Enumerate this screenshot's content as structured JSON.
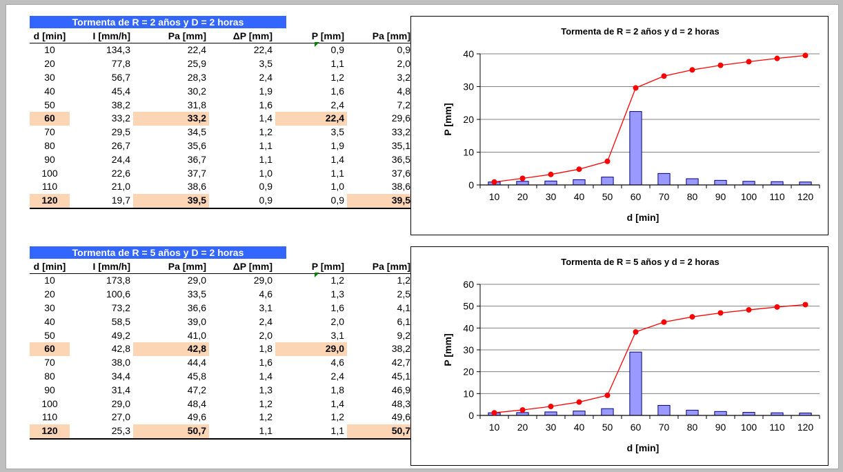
{
  "colors": {
    "banner": "#3366ff",
    "highlight": "#fcd5b4",
    "bar_fill": "#9999ff",
    "line": "#ff0000"
  },
  "headers": [
    "d [min]",
    "I [mm/h]",
    "Pa [mm]",
    "ΔP [mm]",
    "P [mm]",
    "Pa [mm]"
  ],
  "tables": [
    {
      "banner": "Tormenta de R = 2 años y D = 2 horas",
      "rows": [
        [
          "10",
          "134,3",
          "22,4",
          "22,4",
          "0,9",
          "0,9"
        ],
        [
          "20",
          "77,8",
          "25,9",
          "3,5",
          "1,1",
          "2,0"
        ],
        [
          "30",
          "56,7",
          "28,3",
          "2,4",
          "1,2",
          "3,2"
        ],
        [
          "40",
          "45,4",
          "30,2",
          "1,9",
          "1,6",
          "4,8"
        ],
        [
          "50",
          "38,2",
          "31,8",
          "1,6",
          "2,4",
          "7,2"
        ],
        [
          "60",
          "33,2",
          "33,2",
          "1,4",
          "22,4",
          "29,6"
        ],
        [
          "70",
          "29,5",
          "34,5",
          "1,2",
          "3,5",
          "33,2"
        ],
        [
          "80",
          "26,7",
          "35,6",
          "1,1",
          "1,9",
          "35,1"
        ],
        [
          "90",
          "24,4",
          "36,7",
          "1,1",
          "1,4",
          "36,5"
        ],
        [
          "100",
          "22,6",
          "37,7",
          "1,0",
          "1,1",
          "37,6"
        ],
        [
          "110",
          "21,0",
          "38,6",
          "0,9",
          "1,0",
          "38,6"
        ],
        [
          "120",
          "19,7",
          "39,5",
          "0,9",
          "0,9",
          "39,5"
        ]
      ],
      "highlights": [
        [
          5,
          0
        ],
        [
          5,
          2
        ],
        [
          5,
          4
        ],
        [
          11,
          0
        ],
        [
          11,
          2
        ],
        [
          11,
          5
        ]
      ]
    },
    {
      "banner": "Tormenta de R = 5 años y D = 2 horas",
      "rows": [
        [
          "10",
          "173,8",
          "29,0",
          "29,0",
          "1,2",
          "1,2"
        ],
        [
          "20",
          "100,6",
          "33,5",
          "4,6",
          "1,3",
          "2,5"
        ],
        [
          "30",
          "73,2",
          "36,6",
          "3,1",
          "1,6",
          "4,1"
        ],
        [
          "40",
          "58,5",
          "39,0",
          "2,4",
          "2,0",
          "6,1"
        ],
        [
          "50",
          "49,2",
          "41,0",
          "2,0",
          "3,1",
          "9,2"
        ],
        [
          "60",
          "42,8",
          "42,8",
          "1,8",
          "29,0",
          "38,2"
        ],
        [
          "70",
          "38,0",
          "44,4",
          "1,6",
          "4,6",
          "42,7"
        ],
        [
          "80",
          "34,4",
          "45,8",
          "1,4",
          "2,4",
          "45,1"
        ],
        [
          "90",
          "31,4",
          "47,2",
          "1,3",
          "1,8",
          "46,9"
        ],
        [
          "100",
          "29,0",
          "48,4",
          "1,2",
          "1,4",
          "48,3"
        ],
        [
          "110",
          "27,0",
          "49,6",
          "1,2",
          "1,2",
          "49,6"
        ],
        [
          "120",
          "25,3",
          "50,7",
          "1,1",
          "1,1",
          "50,7"
        ]
      ],
      "highlights": [
        [
          5,
          0
        ],
        [
          5,
          2
        ],
        [
          5,
          4
        ],
        [
          11,
          0
        ],
        [
          11,
          2
        ],
        [
          11,
          5
        ]
      ]
    }
  ],
  "chart_data": [
    {
      "type": "bar",
      "title": "Tormenta de R = 2 años y d = 2 horas",
      "xlabel": "d [min]",
      "ylabel": "P [mm]",
      "categories": [
        "10",
        "20",
        "30",
        "40",
        "50",
        "60",
        "70",
        "80",
        "90",
        "100",
        "110",
        "120"
      ],
      "ylim": [
        0,
        40
      ],
      "yticks": [
        0,
        10,
        20,
        30,
        40
      ],
      "grid": true,
      "legend": "none",
      "series": [
        {
          "type": "bar",
          "values": [
            0.9,
            1.1,
            1.2,
            1.6,
            2.4,
            22.4,
            3.5,
            1.9,
            1.4,
            1.1,
            1.0,
            0.9
          ]
        },
        {
          "type": "line",
          "values": [
            0.9,
            2.0,
            3.2,
            4.8,
            7.2,
            29.6,
            33.2,
            35.1,
            36.5,
            37.6,
            38.6,
            39.5
          ]
        }
      ]
    },
    {
      "type": "bar",
      "title": "Tormenta de R = 5 años y d = 2 horas",
      "xlabel": "d [min]",
      "ylabel": "P [mm]",
      "categories": [
        "10",
        "20",
        "30",
        "40",
        "50",
        "60",
        "70",
        "80",
        "90",
        "100",
        "110",
        "120"
      ],
      "ylim": [
        0,
        60
      ],
      "yticks": [
        0,
        10,
        20,
        30,
        40,
        50,
        60
      ],
      "grid": true,
      "legend": "none",
      "series": [
        {
          "type": "bar",
          "values": [
            1.2,
            1.3,
            1.6,
            2.0,
            3.1,
            29.0,
            4.6,
            2.4,
            1.8,
            1.4,
            1.2,
            1.1
          ]
        },
        {
          "type": "line",
          "values": [
            1.2,
            2.5,
            4.1,
            6.1,
            9.2,
            38.2,
            42.7,
            45.1,
            46.9,
            48.3,
            49.6,
            50.7
          ]
        }
      ]
    }
  ]
}
